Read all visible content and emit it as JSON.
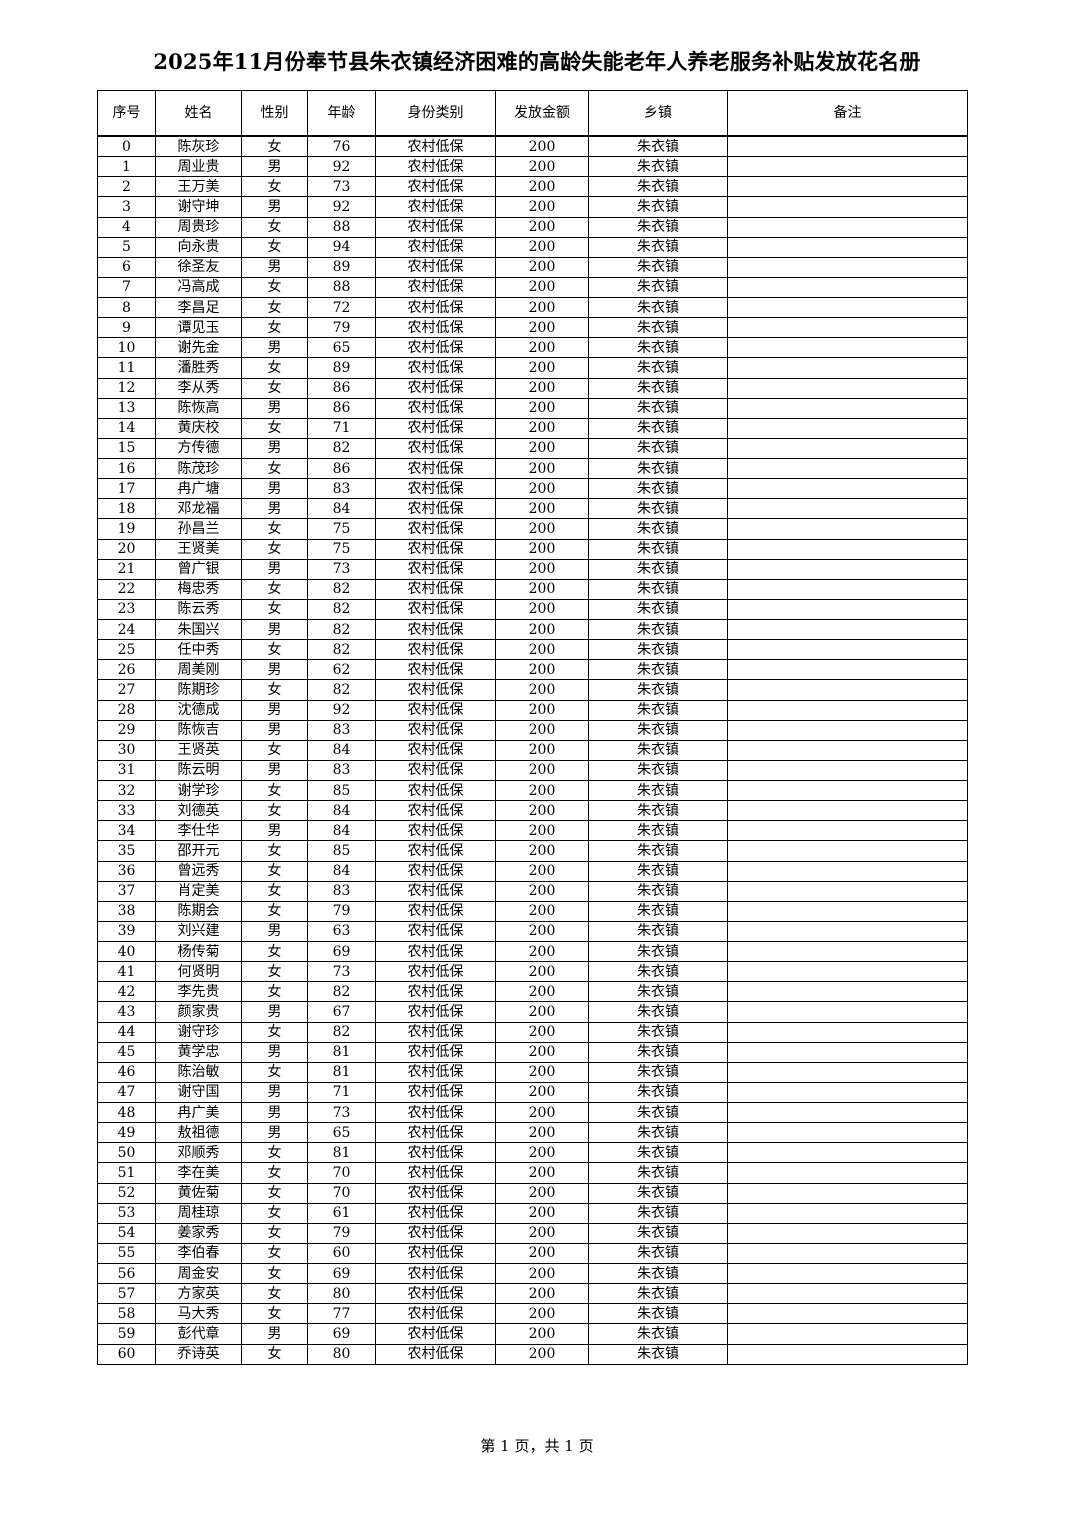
{
  "title": "2025年11月份奉节县朱衣镇经济困难的高龄失能老年人养老服务补贴发放花名册",
  "columns": [
    "序号",
    "姓名",
    "性别",
    "年龄",
    "身份类别",
    "发放金额",
    "乡镇",
    "备注"
  ],
  "rows": [
    [
      "0",
      "陈灰珍",
      "女",
      "76",
      "农村低保",
      "200",
      "朱衣镇",
      ""
    ],
    [
      "1",
      "周业贵",
      "男",
      "92",
      "农村低保",
      "200",
      "朱衣镇",
      ""
    ],
    [
      "2",
      "王万美",
      "女",
      "73",
      "农村低保",
      "200",
      "朱衣镇",
      ""
    ],
    [
      "3",
      "谢守坤",
      "男",
      "92",
      "农村低保",
      "200",
      "朱衣镇",
      ""
    ],
    [
      "4",
      "周贵珍",
      "女",
      "88",
      "农村低保",
      "200",
      "朱衣镇",
      ""
    ],
    [
      "5",
      "向永贵",
      "女",
      "94",
      "农村低保",
      "200",
      "朱衣镇",
      ""
    ],
    [
      "6",
      "徐圣友",
      "男",
      "89",
      "农村低保",
      "200",
      "朱衣镇",
      ""
    ],
    [
      "7",
      "冯高成",
      "女",
      "88",
      "农村低保",
      "200",
      "朱衣镇",
      ""
    ],
    [
      "8",
      "李昌足",
      "女",
      "72",
      "农村低保",
      "200",
      "朱衣镇",
      ""
    ],
    [
      "9",
      "谭见玉",
      "女",
      "79",
      "农村低保",
      "200",
      "朱衣镇",
      ""
    ],
    [
      "10",
      "谢先金",
      "男",
      "65",
      "农村低保",
      "200",
      "朱衣镇",
      ""
    ],
    [
      "11",
      "潘胜秀",
      "女",
      "89",
      "农村低保",
      "200",
      "朱衣镇",
      ""
    ],
    [
      "12",
      "李从秀",
      "女",
      "86",
      "农村低保",
      "200",
      "朱衣镇",
      ""
    ],
    [
      "13",
      "陈恢高",
      "男",
      "86",
      "农村低保",
      "200",
      "朱衣镇",
      ""
    ],
    [
      "14",
      "黄庆校",
      "女",
      "71",
      "农村低保",
      "200",
      "朱衣镇",
      ""
    ],
    [
      "15",
      "方传德",
      "男",
      "82",
      "农村低保",
      "200",
      "朱衣镇",
      ""
    ],
    [
      "16",
      "陈茂珍",
      "女",
      "86",
      "农村低保",
      "200",
      "朱衣镇",
      ""
    ],
    [
      "17",
      "冉广塘",
      "男",
      "83",
      "农村低保",
      "200",
      "朱衣镇",
      ""
    ],
    [
      "18",
      "邓龙福",
      "男",
      "84",
      "农村低保",
      "200",
      "朱衣镇",
      ""
    ],
    [
      "19",
      "孙昌兰",
      "女",
      "75",
      "农村低保",
      "200",
      "朱衣镇",
      ""
    ],
    [
      "20",
      "王贤美",
      "女",
      "75",
      "农村低保",
      "200",
      "朱衣镇",
      ""
    ],
    [
      "21",
      "曾广银",
      "男",
      "73",
      "农村低保",
      "200",
      "朱衣镇",
      ""
    ],
    [
      "22",
      "梅忠秀",
      "女",
      "82",
      "农村低保",
      "200",
      "朱衣镇",
      ""
    ],
    [
      "23",
      "陈云秀",
      "女",
      "82",
      "农村低保",
      "200",
      "朱衣镇",
      ""
    ],
    [
      "24",
      "朱国兴",
      "男",
      "82",
      "农村低保",
      "200",
      "朱衣镇",
      ""
    ],
    [
      "25",
      "任中秀",
      "女",
      "82",
      "农村低保",
      "200",
      "朱衣镇",
      ""
    ],
    [
      "26",
      "周美刚",
      "男",
      "62",
      "农村低保",
      "200",
      "朱衣镇",
      ""
    ],
    [
      "27",
      "陈期珍",
      "女",
      "82",
      "农村低保",
      "200",
      "朱衣镇",
      ""
    ],
    [
      "28",
      "沈德成",
      "男",
      "92",
      "农村低保",
      "200",
      "朱衣镇",
      ""
    ],
    [
      "29",
      "陈恢吉",
      "男",
      "83",
      "农村低保",
      "200",
      "朱衣镇",
      ""
    ],
    [
      "30",
      "王贤英",
      "女",
      "84",
      "农村低保",
      "200",
      "朱衣镇",
      ""
    ],
    [
      "31",
      "陈云明",
      "男",
      "83",
      "农村低保",
      "200",
      "朱衣镇",
      ""
    ],
    [
      "32",
      "谢学珍",
      "女",
      "85",
      "农村低保",
      "200",
      "朱衣镇",
      ""
    ],
    [
      "33",
      "刘德英",
      "女",
      "84",
      "农村低保",
      "200",
      "朱衣镇",
      ""
    ],
    [
      "34",
      "李仕华",
      "男",
      "84",
      "农村低保",
      "200",
      "朱衣镇",
      ""
    ],
    [
      "35",
      "邵开元",
      "女",
      "85",
      "农村低保",
      "200",
      "朱衣镇",
      ""
    ],
    [
      "36",
      "曾远秀",
      "女",
      "84",
      "农村低保",
      "200",
      "朱衣镇",
      ""
    ],
    [
      "37",
      "肖定美",
      "女",
      "83",
      "农村低保",
      "200",
      "朱衣镇",
      ""
    ],
    [
      "38",
      "陈期会",
      "女",
      "79",
      "农村低保",
      "200",
      "朱衣镇",
      ""
    ],
    [
      "39",
      "刘兴建",
      "男",
      "63",
      "农村低保",
      "200",
      "朱衣镇",
      ""
    ],
    [
      "40",
      "杨传菊",
      "女",
      "69",
      "农村低保",
      "200",
      "朱衣镇",
      ""
    ],
    [
      "41",
      "何贤明",
      "女",
      "73",
      "农村低保",
      "200",
      "朱衣镇",
      ""
    ],
    [
      "42",
      "李先贵",
      "女",
      "82",
      "农村低保",
      "200",
      "朱衣镇",
      ""
    ],
    [
      "43",
      "颜家贵",
      "男",
      "67",
      "农村低保",
      "200",
      "朱衣镇",
      ""
    ],
    [
      "44",
      "谢守珍",
      "女",
      "82",
      "农村低保",
      "200",
      "朱衣镇",
      ""
    ],
    [
      "45",
      "黄学忠",
      "男",
      "81",
      "农村低保",
      "200",
      "朱衣镇",
      ""
    ],
    [
      "46",
      "陈治敏",
      "女",
      "81",
      "农村低保",
      "200",
      "朱衣镇",
      ""
    ],
    [
      "47",
      "谢守国",
      "男",
      "71",
      "农村低保",
      "200",
      "朱衣镇",
      ""
    ],
    [
      "48",
      "冉广美",
      "男",
      "73",
      "农村低保",
      "200",
      "朱衣镇",
      ""
    ],
    [
      "49",
      "敖祖德",
      "男",
      "65",
      "农村低保",
      "200",
      "朱衣镇",
      ""
    ],
    [
      "50",
      "邓顺秀",
      "女",
      "81",
      "农村低保",
      "200",
      "朱衣镇",
      ""
    ],
    [
      "51",
      "李在美",
      "女",
      "70",
      "农村低保",
      "200",
      "朱衣镇",
      ""
    ],
    [
      "52",
      "黄佐菊",
      "女",
      "70",
      "农村低保",
      "200",
      "朱衣镇",
      ""
    ],
    [
      "53",
      "周桂琼",
      "女",
      "61",
      "农村低保",
      "200",
      "朱衣镇",
      ""
    ],
    [
      "54",
      "姜家秀",
      "女",
      "79",
      "农村低保",
      "200",
      "朱衣镇",
      ""
    ],
    [
      "55",
      "李伯春",
      "女",
      "60",
      "农村低保",
      "200",
      "朱衣镇",
      ""
    ],
    [
      "56",
      "周金安",
      "女",
      "69",
      "农村低保",
      "200",
      "朱衣镇",
      ""
    ],
    [
      "57",
      "方家英",
      "女",
      "80",
      "农村低保",
      "200",
      "朱衣镇",
      ""
    ],
    [
      "58",
      "马大秀",
      "女",
      "77",
      "农村低保",
      "200",
      "朱衣镇",
      ""
    ],
    [
      "59",
      "彭代章",
      "男",
      "69",
      "农村低保",
      "200",
      "朱衣镇",
      ""
    ],
    [
      "60",
      "乔诗英",
      "女",
      "80",
      "农村低保",
      "200",
      "朱衣镇",
      ""
    ]
  ],
  "footer": "第 1 页，共 1 页"
}
